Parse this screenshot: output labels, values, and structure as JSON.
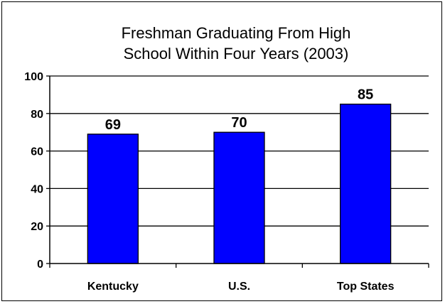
{
  "chart_data": {
    "type": "bar",
    "title_lines": [
      "Freshman Graduating From High",
      "School Within Four Years (2003)"
    ],
    "categories": [
      "Kentucky",
      "U.S.",
      "Top States"
    ],
    "values": [
      69,
      70,
      85
    ],
    "data_labels": [
      "69",
      "70",
      "85"
    ],
    "ylim": [
      0,
      100
    ],
    "yticks": [
      0,
      20,
      40,
      60,
      80,
      100
    ],
    "ytick_labels": [
      "0",
      "20",
      "40",
      "60",
      "80",
      "100"
    ],
    "xlabel": "",
    "ylabel": "",
    "grid": true,
    "legend": "none",
    "colors": {
      "bar": "#0000FF",
      "bar_stroke": "#000000",
      "grid": "#000000"
    }
  }
}
